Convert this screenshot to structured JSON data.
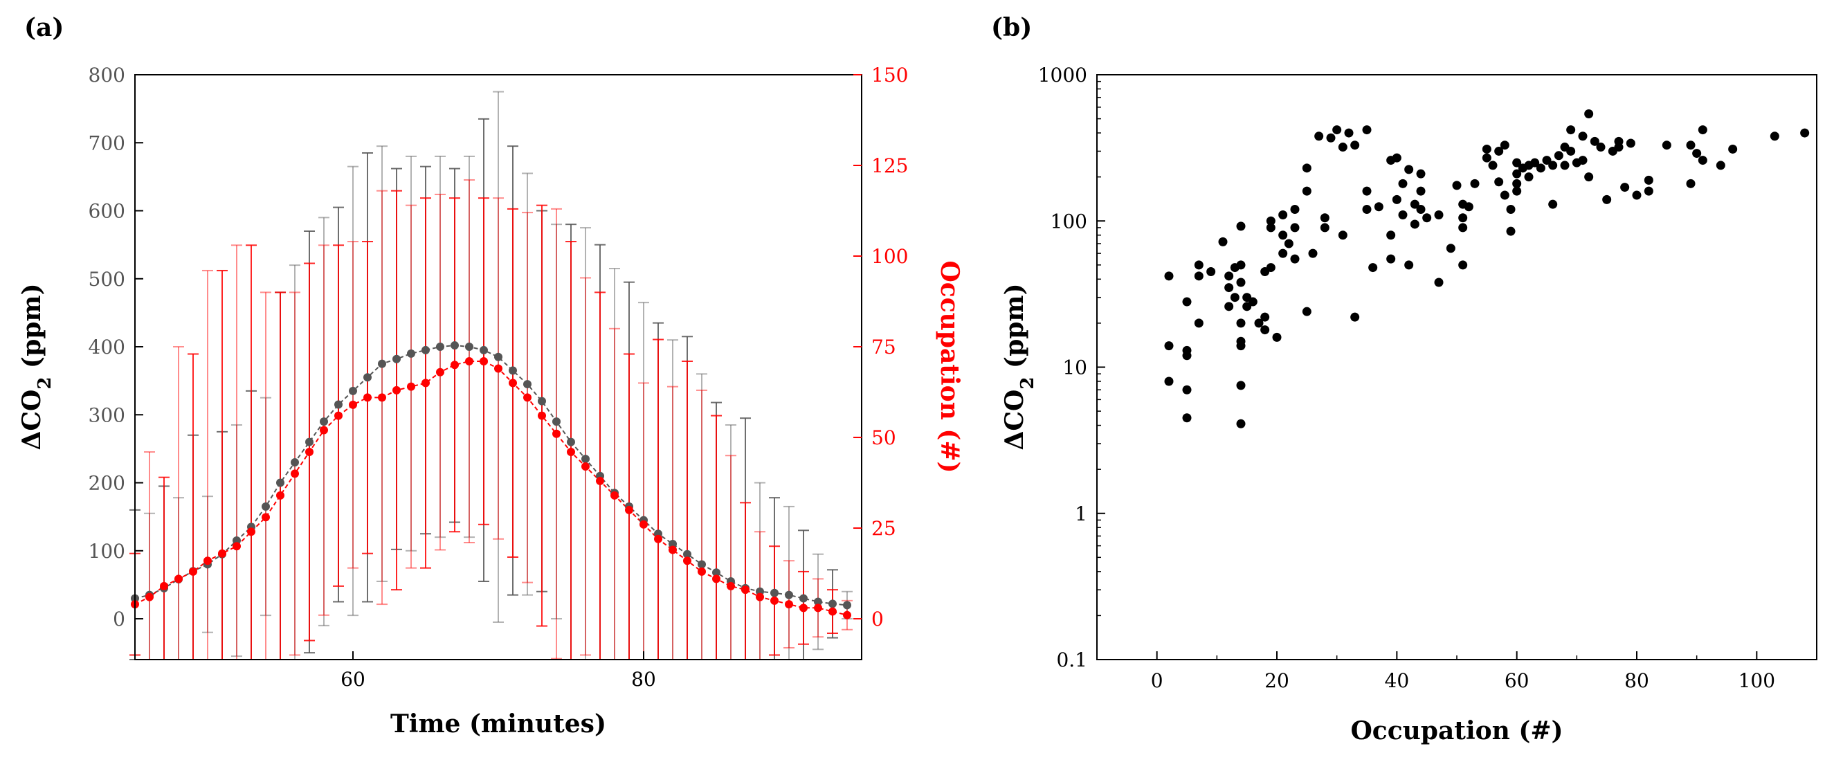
{
  "panels": {
    "a": "(a)",
    "b": "(b)"
  },
  "colors": {
    "co2": "#555555",
    "occ": "#ff0000",
    "axis": "#000000"
  },
  "chart_data": [
    {
      "id": "a",
      "type": "line",
      "title": "",
      "xlabel": "Time (minutes)",
      "ylabel_prefix": "ΔCO",
      "ylabel_sub": "2",
      "ylabel_suffix": " (ppm)",
      "y2label": "Occupation (#)",
      "xlim": [
        45,
        95
      ],
      "ylim": [
        -60,
        800
      ],
      "y2lim": [
        -11.25,
        150
      ],
      "xticks": [
        60,
        80
      ],
      "yticks": [
        0,
        100,
        200,
        300,
        400,
        500,
        600,
        700,
        800
      ],
      "y2ticks": [
        0,
        25,
        50,
        75,
        100,
        125,
        150
      ],
      "series": [
        {
          "name": "ΔCO2",
          "axis": "left",
          "x": [
            45,
            46,
            47,
            48,
            49,
            50,
            51,
            52,
            53,
            54,
            55,
            56,
            57,
            58,
            59,
            60,
            61,
            62,
            63,
            64,
            65,
            66,
            67,
            68,
            69,
            70,
            71,
            72,
            73,
            74,
            75,
            76,
            77,
            78,
            79,
            80,
            81,
            82,
            83,
            84,
            85,
            86,
            87,
            88,
            89,
            90,
            91,
            92,
            93,
            94
          ],
          "values": [
            30,
            35,
            45,
            58,
            70,
            80,
            95,
            115,
            135,
            165,
            200,
            230,
            260,
            290,
            315,
            335,
            355,
            375,
            382,
            390,
            395,
            400,
            402,
            400,
            395,
            385,
            365,
            345,
            320,
            290,
            260,
            235,
            210,
            185,
            165,
            145,
            125,
            110,
            95,
            80,
            68,
            55,
            45,
            40,
            38,
            35,
            30,
            25,
            22,
            20
          ],
          "err": [
            130,
            120,
            150,
            120,
            200,
            100,
            180,
            170,
            200,
            160,
            280,
            290,
            310,
            300,
            290,
            330,
            330,
            320,
            280,
            290,
            270,
            280,
            260,
            280,
            340,
            390,
            330,
            310,
            280,
            290,
            320,
            340,
            340,
            330,
            330,
            320,
            310,
            300,
            320,
            280,
            250,
            230,
            250,
            160,
            140,
            130,
            100,
            70,
            50,
            20
          ]
        },
        {
          "name": "Occupation",
          "axis": "right",
          "x": [
            45,
            46,
            47,
            48,
            49,
            50,
            51,
            52,
            53,
            54,
            55,
            56,
            57,
            58,
            59,
            60,
            61,
            62,
            63,
            64,
            65,
            66,
            67,
            68,
            69,
            70,
            71,
            72,
            73,
            74,
            75,
            76,
            77,
            78,
            79,
            80,
            81,
            82,
            83,
            84,
            85,
            86,
            87,
            88,
            89,
            90,
            91,
            92,
            93,
            94
          ],
          "values": [
            4,
            6,
            9,
            11,
            13,
            16,
            18,
            20,
            24,
            28,
            34,
            40,
            46,
            52,
            56,
            59,
            61,
            61,
            63,
            64,
            65,
            68,
            70,
            71,
            71,
            69,
            65,
            61,
            56,
            51,
            46,
            42,
            38,
            34,
            30,
            26,
            22,
            19,
            16,
            13,
            11,
            9,
            8,
            6,
            5,
            4,
            3,
            3,
            2,
            1
          ],
          "err": [
            14,
            40,
            30,
            64,
            60,
            80,
            78,
            83,
            79,
            62,
            56,
            50,
            52,
            51,
            47,
            45,
            43,
            57,
            55,
            50,
            51,
            49,
            46,
            50,
            45,
            47,
            48,
            51,
            58,
            62,
            58,
            52,
            52,
            46,
            43,
            39,
            55,
            45,
            55,
            50,
            45,
            36,
            24,
            18,
            15,
            12,
            10,
            8,
            6,
            4
          ]
        }
      ]
    },
    {
      "id": "b",
      "type": "scatter",
      "title": "",
      "xlabel": "Occupation (#)",
      "ylabel_prefix": "ΔCO",
      "ylabel_sub": "2",
      "ylabel_suffix": " (ppm)",
      "xlim": [
        -10,
        110
      ],
      "ylim": [
        0.1,
        1000
      ],
      "yscale": "log",
      "xticks": [
        0,
        20,
        40,
        60,
        80,
        100
      ],
      "yticks": [
        0.1,
        1,
        10,
        100,
        1000
      ],
      "ytick_labels": [
        "0.1",
        "1",
        "10",
        "100",
        "1000"
      ],
      "points": [
        [
          2,
          42
        ],
        [
          2,
          14
        ],
        [
          2,
          8
        ],
        [
          5,
          13
        ],
        [
          5,
          12
        ],
        [
          5,
          7
        ],
        [
          5,
          4.5
        ],
        [
          5,
          28
        ],
        [
          7,
          50
        ],
        [
          7,
          42
        ],
        [
          7,
          20
        ],
        [
          9,
          45
        ],
        [
          11,
          72
        ],
        [
          12,
          42
        ],
        [
          12,
          35
        ],
        [
          12,
          26
        ],
        [
          13,
          30
        ],
        [
          13,
          48
        ],
        [
          14,
          20
        ],
        [
          14,
          15
        ],
        [
          14,
          14
        ],
        [
          14,
          7.5
        ],
        [
          14,
          4.1
        ],
        [
          14,
          92
        ],
        [
          14,
          50
        ],
        [
          14,
          38
        ],
        [
          15,
          30
        ],
        [
          15,
          26
        ],
        [
          16,
          28
        ],
        [
          17,
          20
        ],
        [
          18,
          45
        ],
        [
          18,
          18
        ],
        [
          18,
          22
        ],
        [
          19,
          100
        ],
        [
          19,
          90
        ],
        [
          19,
          48
        ],
        [
          20,
          16
        ],
        [
          21,
          110
        ],
        [
          21,
          80
        ],
        [
          21,
          60
        ],
        [
          22,
          70
        ],
        [
          23,
          90
        ],
        [
          23,
          55
        ],
        [
          23,
          120
        ],
        [
          25,
          160
        ],
        [
          25,
          230
        ],
        [
          25,
          24
        ],
        [
          26,
          60
        ],
        [
          27,
          380
        ],
        [
          28,
          90
        ],
        [
          28,
          105
        ],
        [
          29,
          370
        ],
        [
          30,
          420
        ],
        [
          31,
          80
        ],
        [
          31,
          320
        ],
        [
          32,
          400
        ],
        [
          33,
          22
        ],
        [
          33,
          330
        ],
        [
          35,
          420
        ],
        [
          35,
          120
        ],
        [
          35,
          160
        ],
        [
          36,
          48
        ],
        [
          37,
          125
        ],
        [
          39,
          260
        ],
        [
          39,
          80
        ],
        [
          39,
          55
        ],
        [
          40,
          270
        ],
        [
          40,
          140
        ],
        [
          41,
          180
        ],
        [
          41,
          110
        ],
        [
          42,
          225
        ],
        [
          42,
          50
        ],
        [
          43,
          130
        ],
        [
          43,
          95
        ],
        [
          44,
          210
        ],
        [
          44,
          160
        ],
        [
          44,
          120
        ],
        [
          45,
          105
        ],
        [
          47,
          38
        ],
        [
          47,
          110
        ],
        [
          49,
          65
        ],
        [
          50,
          175
        ],
        [
          51,
          130
        ],
        [
          51,
          105
        ],
        [
          51,
          90
        ],
        [
          51,
          50
        ],
        [
          52,
          125
        ],
        [
          53,
          180
        ],
        [
          55,
          270
        ],
        [
          55,
          310
        ],
        [
          56,
          240
        ],
        [
          57,
          300
        ],
        [
          57,
          185
        ],
        [
          58,
          330
        ],
        [
          58,
          150
        ],
        [
          59,
          120
        ],
        [
          59,
          85
        ],
        [
          60,
          250
        ],
        [
          60,
          210
        ],
        [
          60,
          180
        ],
        [
          60,
          160
        ],
        [
          61,
          230
        ],
        [
          62,
          240
        ],
        [
          62,
          200
        ],
        [
          63,
          250
        ],
        [
          64,
          230
        ],
        [
          65,
          260
        ],
        [
          66,
          240
        ],
        [
          66,
          130
        ],
        [
          67,
          280
        ],
        [
          68,
          320
        ],
        [
          68,
          240
        ],
        [
          69,
          300
        ],
        [
          69,
          420
        ],
        [
          70,
          250
        ],
        [
          71,
          380
        ],
        [
          71,
          260
        ],
        [
          72,
          540
        ],
        [
          72,
          200
        ],
        [
          73,
          350
        ],
        [
          74,
          320
        ],
        [
          75,
          140
        ],
        [
          76,
          300
        ],
        [
          77,
          350
        ],
        [
          77,
          320
        ],
        [
          78,
          170
        ],
        [
          79,
          340
        ],
        [
          80,
          150
        ],
        [
          82,
          190
        ],
        [
          82,
          160
        ],
        [
          85,
          330
        ],
        [
          89,
          180
        ],
        [
          89,
          330
        ],
        [
          90,
          290
        ],
        [
          91,
          420
        ],
        [
          91,
          260
        ],
        [
          94,
          240
        ],
        [
          96,
          310
        ],
        [
          103,
          380
        ],
        [
          108,
          400
        ]
      ]
    }
  ]
}
